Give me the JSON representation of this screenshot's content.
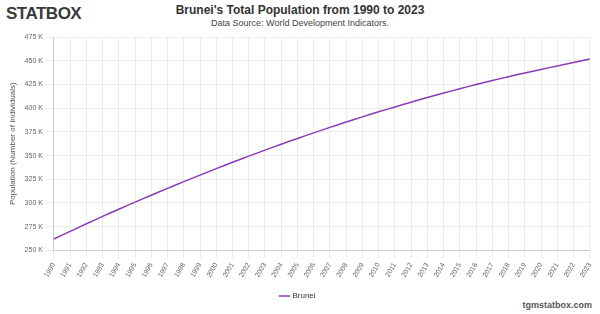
{
  "chart_data": {
    "type": "line",
    "title": "Brunei's Total Population from 1990 to 2023",
    "subtitle": "Data Source: World Development Indicators.",
    "y_label": "Population (Number of Individuals)",
    "annotations": [
      "STATBOX",
      "tgmstatbox.com"
    ],
    "categories": [
      "1990",
      "1991",
      "1992",
      "1993",
      "1994",
      "1995",
      "1996",
      "1997",
      "1998",
      "1999",
      "2000",
      "2001",
      "2002",
      "2003",
      "2004",
      "2005",
      "2006",
      "2007",
      "2008",
      "2009",
      "2010",
      "2011",
      "2012",
      "2013",
      "2014",
      "2015",
      "2016",
      "2017",
      "2018",
      "2019",
      "2020",
      "2021",
      "2022",
      "2023"
    ],
    "series": [
      {
        "name": "Brunei",
        "color": "#8a3ab9",
        "values": [
          262000,
          270000,
          278000,
          285800,
          293400,
          300900,
          308200,
          315400,
          322500,
          329400,
          336200,
          342900,
          349400,
          355800,
          362000,
          368100,
          374000,
          379800,
          385400,
          390900,
          396200,
          401400,
          406400,
          411300,
          416000,
          420600,
          425000,
          429200,
          433300,
          437200,
          441000,
          444700,
          448300,
          452000
        ]
      }
    ],
    "ylim": [
      250000,
      475000
    ],
    "yticks": [
      {
        "value": 250000,
        "label": "250 K"
      },
      {
        "value": 275000,
        "label": "275 K"
      },
      {
        "value": 300000,
        "label": "300 K"
      },
      {
        "value": 325000,
        "label": "325 K"
      },
      {
        "value": 350000,
        "label": "350 K"
      },
      {
        "value": 375000,
        "label": "375 K"
      },
      {
        "value": 400000,
        "label": "400 K"
      },
      {
        "value": 425000,
        "label": "425 K"
      },
      {
        "value": 450000,
        "label": "450 K"
      },
      {
        "value": 475000,
        "label": "475 K"
      }
    ],
    "grid": true,
    "legend": "bottom"
  }
}
